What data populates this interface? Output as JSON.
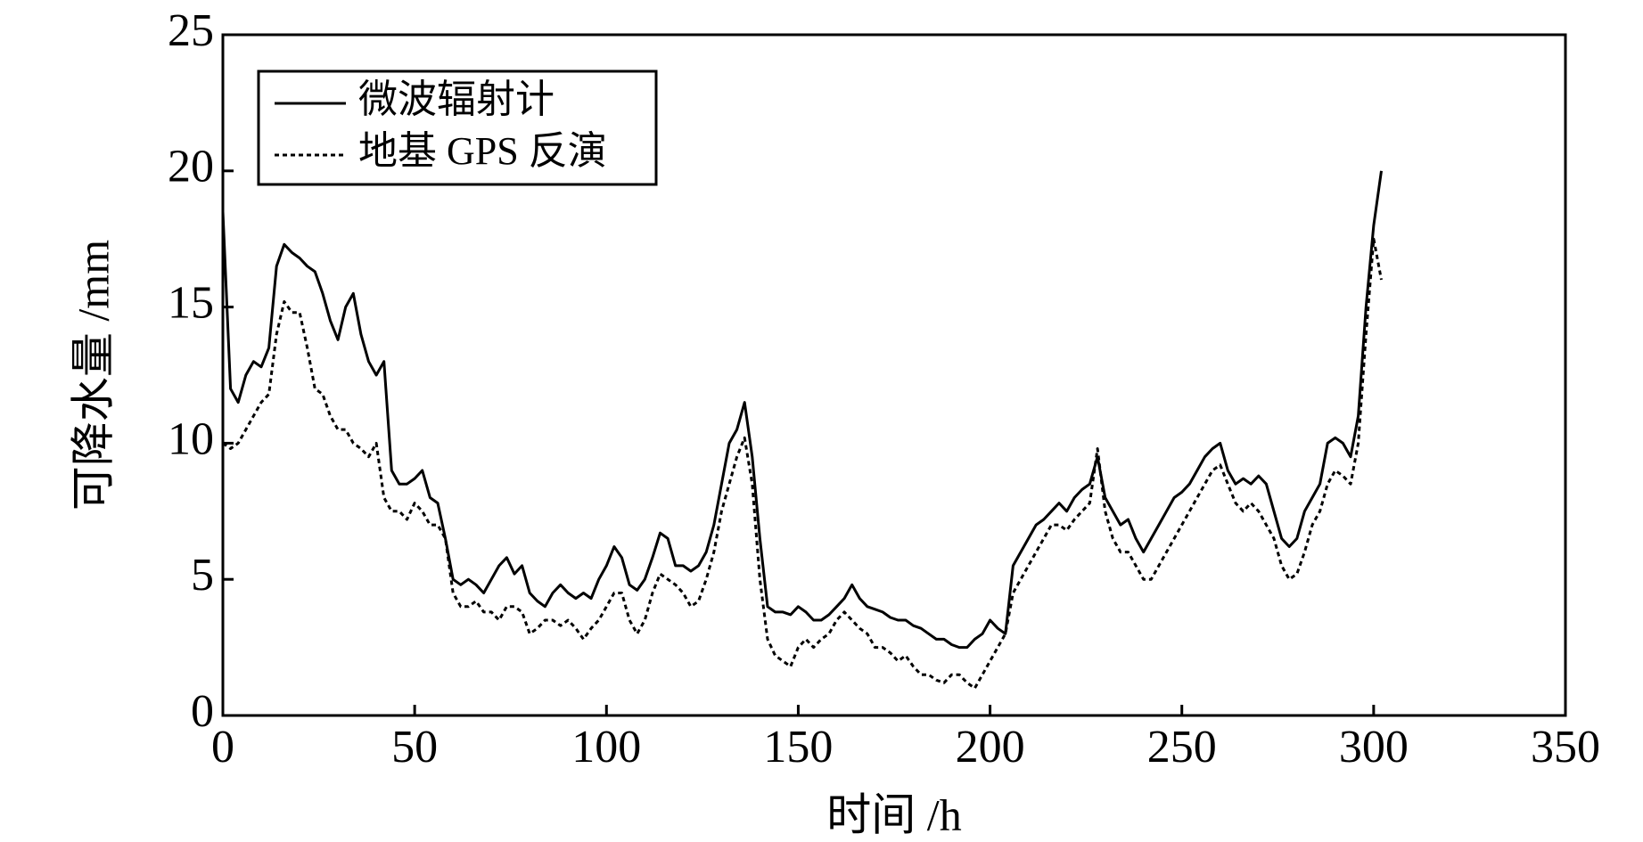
{
  "chart_data": {
    "type": "line",
    "xlabel": "时间 /h",
    "ylabel": "可降水量 /mm",
    "x": [
      0,
      2,
      4,
      6,
      8,
      10,
      12,
      14,
      16,
      18,
      20,
      22,
      24,
      26,
      28,
      30,
      32,
      34,
      36,
      38,
      40,
      42,
      44,
      46,
      48,
      50,
      52,
      54,
      56,
      58,
      60,
      62,
      64,
      66,
      68,
      70,
      72,
      74,
      76,
      78,
      80,
      82,
      84,
      86,
      88,
      90,
      92,
      94,
      96,
      98,
      100,
      102,
      104,
      106,
      108,
      110,
      112,
      114,
      116,
      118,
      120,
      122,
      124,
      126,
      128,
      130,
      132,
      134,
      136,
      138,
      140,
      142,
      144,
      146,
      148,
      150,
      152,
      154,
      156,
      158,
      160,
      162,
      164,
      166,
      168,
      170,
      172,
      174,
      176,
      178,
      180,
      182,
      184,
      186,
      188,
      190,
      192,
      194,
      196,
      198,
      200,
      202,
      204,
      206,
      208,
      210,
      212,
      214,
      216,
      218,
      220,
      222,
      224,
      226,
      228,
      230,
      232,
      234,
      236,
      238,
      240,
      242,
      244,
      246,
      248,
      250,
      252,
      254,
      256,
      258,
      260,
      262,
      264,
      266,
      268,
      270,
      272,
      274,
      276,
      278,
      280,
      282,
      284,
      286,
      288,
      290,
      292,
      294,
      296,
      298,
      300,
      302
    ],
    "series": [
      {
        "name": "微波辐射计",
        "color": "#000000",
        "dash": false,
        "values": [
          18.5,
          12,
          11.5,
          12.5,
          13,
          12.8,
          13.5,
          16.5,
          17.3,
          17,
          16.8,
          16.5,
          16.3,
          15.5,
          14.5,
          13.8,
          15,
          15.5,
          14,
          13,
          12.5,
          13,
          9,
          8.5,
          8.5,
          8.7,
          9,
          8,
          7.8,
          6.5,
          5,
          4.8,
          5,
          4.8,
          4.5,
          5,
          5.5,
          5.8,
          5.2,
          5.5,
          4.5,
          4.2,
          4,
          4.5,
          4.8,
          4.5,
          4.3,
          4.5,
          4.3,
          5,
          5.5,
          6.2,
          5.8,
          4.8,
          4.6,
          5,
          5.8,
          6.7,
          6.5,
          5.5,
          5.5,
          5.3,
          5.5,
          6,
          7,
          8.5,
          10,
          10.5,
          11.5,
          9.5,
          6.5,
          4,
          3.8,
          3.8,
          3.7,
          4,
          3.8,
          3.5,
          3.5,
          3.7,
          4,
          4.3,
          4.8,
          4.3,
          4,
          3.9,
          3.8,
          3.6,
          3.5,
          3.5,
          3.3,
          3.2,
          3,
          2.8,
          2.8,
          2.6,
          2.5,
          2.5,
          2.8,
          3,
          3.5,
          3.2,
          3,
          5.5,
          6,
          6.5,
          7,
          7.2,
          7.5,
          7.8,
          7.5,
          8,
          8.3,
          8.5,
          9.5,
          8,
          7.5,
          7,
          7.2,
          6.5,
          6,
          6.5,
          7,
          7.5,
          8,
          8.2,
          8.5,
          9,
          9.5,
          9.8,
          10,
          9,
          8.5,
          8.7,
          8.5,
          8.8,
          8.5,
          7.5,
          6.5,
          6.2,
          6.5,
          7.5,
          8,
          8.5,
          10,
          10.2,
          10,
          9.5,
          11,
          15,
          18,
          20
        ]
      },
      {
        "name": "地基 GPS 反演",
        "color": "#000000",
        "dash": true,
        "values": [
          10,
          9.8,
          10,
          10.5,
          11,
          11.5,
          11.8,
          14,
          15.2,
          14.8,
          14.8,
          13.5,
          12,
          11.8,
          11,
          10.5,
          10.5,
          10,
          9.8,
          9.5,
          10,
          8,
          7.5,
          7.5,
          7.2,
          7.8,
          7.5,
          7,
          7,
          6.5,
          4.5,
          4,
          4,
          4.2,
          3.8,
          3.8,
          3.5,
          4,
          4,
          3.8,
          3,
          3.2,
          3.5,
          3.5,
          3.3,
          3.5,
          3.2,
          2.8,
          3.2,
          3.5,
          4,
          4.5,
          4.5,
          3.5,
          3,
          3.5,
          4.5,
          5.2,
          5,
          4.8,
          4.5,
          4,
          4.2,
          5,
          6,
          7.5,
          8.5,
          9.5,
          10.2,
          8.5,
          5,
          2.8,
          2.2,
          2,
          1.8,
          2.5,
          2.8,
          2.5,
          2.8,
          3,
          3.5,
          3.8,
          3.5,
          3.2,
          3,
          2.5,
          2.5,
          2.3,
          2,
          2.2,
          1.8,
          1.5,
          1.5,
          1.3,
          1.2,
          1.5,
          1.5,
          1.2,
          1,
          1.5,
          2,
          2.5,
          3,
          4.5,
          5,
          5.5,
          6,
          6.5,
          7,
          7,
          6.8,
          7.2,
          7.5,
          7.8,
          9.8,
          7.5,
          6.5,
          6,
          6,
          5.5,
          5,
          5,
          5.5,
          6,
          6.5,
          7,
          7.5,
          8,
          8.5,
          9,
          9.2,
          8.5,
          7.8,
          7.5,
          7.8,
          7.5,
          7,
          6.5,
          5.5,
          5,
          5.2,
          6,
          7,
          7.5,
          8.5,
          9,
          8.8,
          8.5,
          10,
          14,
          17.5,
          16
        ]
      }
    ],
    "xlim": [
      0,
      350
    ],
    "xticks": [
      0,
      50,
      100,
      150,
      200,
      250,
      300,
      350
    ],
    "ylim": [
      0,
      25
    ],
    "yticks": [
      0,
      5,
      10,
      15,
      20,
      25
    ],
    "legend": "upper left"
  }
}
